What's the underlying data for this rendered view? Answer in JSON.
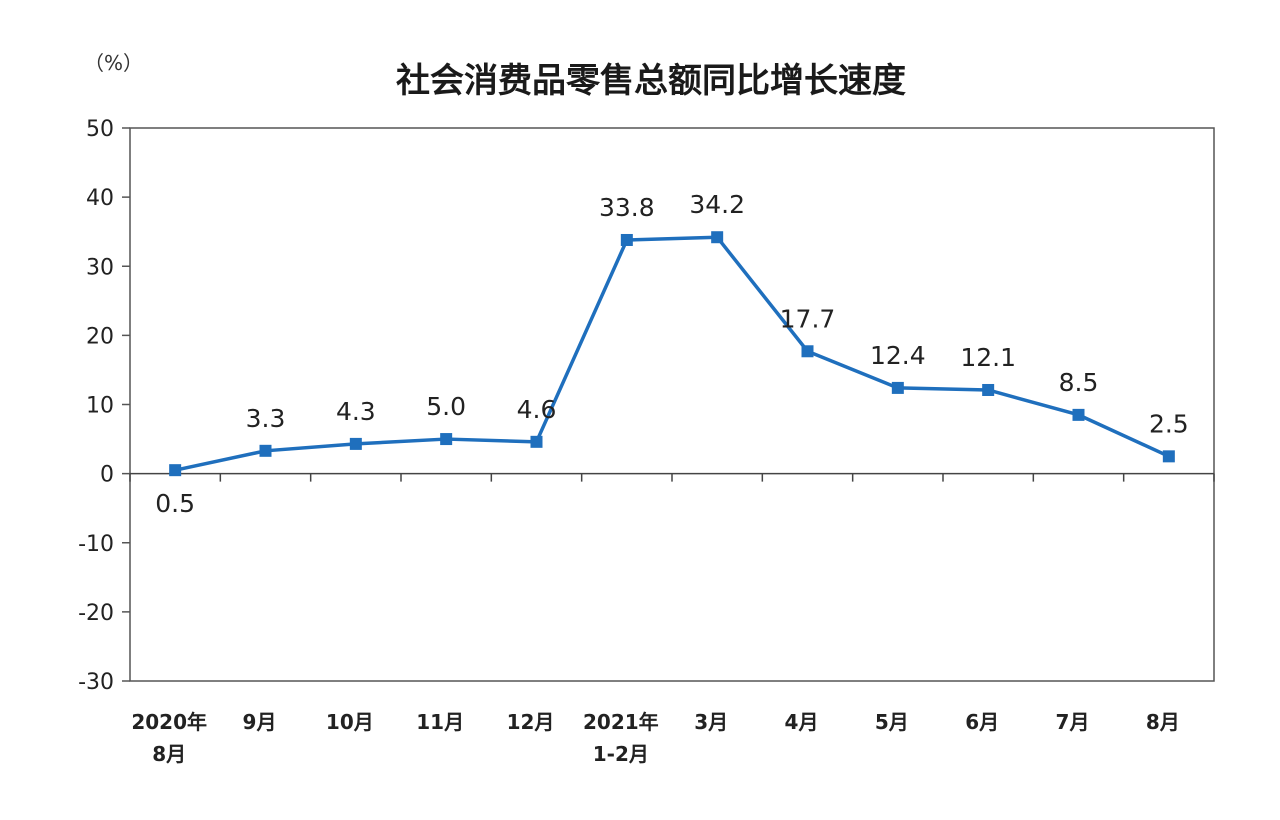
{
  "chart_data": {
    "type": "line",
    "title": "社会消费品零售总额同比增长速度",
    "unit": "（%）",
    "ylim": [
      -30,
      50
    ],
    "yticks": [
      50,
      40,
      30,
      20,
      10,
      0,
      -10,
      -20,
      -30
    ],
    "categories": [
      [
        "2020年",
        "8月"
      ],
      [
        "9月"
      ],
      [
        "10月"
      ],
      [
        "11月"
      ],
      [
        "12月"
      ],
      [
        "2021年",
        "1-2月"
      ],
      [
        "3月"
      ],
      [
        "4月"
      ],
      [
        "5月"
      ],
      [
        "6月"
      ],
      [
        "7月"
      ],
      [
        "8月"
      ]
    ],
    "series": [
      {
        "values": [
          0.5,
          3.3,
          4.3,
          5.0,
          4.6,
          33.8,
          34.2,
          17.7,
          12.4,
          12.1,
          8.5,
          2.5
        ],
        "labels": [
          "0.5",
          "3.3",
          "4.3",
          "5.0",
          "4.6",
          "33.8",
          "34.2",
          "17.7",
          "12.4",
          "12.1",
          "8.5",
          "2.5"
        ],
        "color": "#1f6fbd"
      }
    ],
    "grid": false,
    "legend": "none"
  }
}
